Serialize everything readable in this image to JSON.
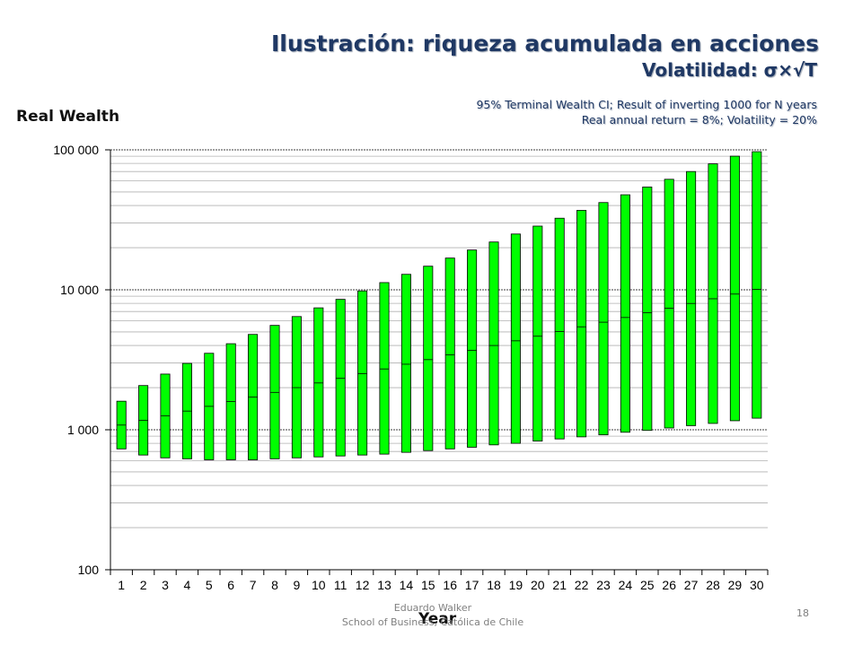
{
  "slide": {
    "title": "Ilustración: riqueza acumulada en acciones",
    "subtitle": "Volatilidad: σ×√T",
    "note_line1": "95% Terminal Wealth CI; Result of inverting 1000 for N years",
    "note_line2": "Real annual return = 8%; Volatility = 20%",
    "footer_line1": "Eduardo Walker",
    "footer_line2": "School of Business, Católica de Chile",
    "page_number": "18"
  },
  "chart_data": {
    "type": "bar",
    "subtype": "floating range (high-low) with median mark",
    "title": "",
    "ylabel": "Real Wealth",
    "xlabel": "Year",
    "yscale": "log",
    "ylim": [
      100,
      100000
    ],
    "yticks": [
      100,
      1000,
      10000,
      100000
    ],
    "ytick_labels": [
      "100",
      "1 000",
      "10 000",
      "100 000"
    ],
    "grid": "horizontal",
    "bar_color": "#00ff00",
    "bar_edge_color": "#000000",
    "categories": [
      "1",
      "2",
      "3",
      "4",
      "5",
      "6",
      "7",
      "8",
      "9",
      "10",
      "11",
      "12",
      "13",
      "14",
      "15",
      "16",
      "17",
      "18",
      "19",
      "20",
      "21",
      "22",
      "23",
      "24",
      "25",
      "26",
      "27",
      "28",
      "29",
      "30"
    ],
    "series": [
      {
        "values_low": [
          730,
          660,
          630,
          620,
          610,
          610,
          610,
          620,
          630,
          640,
          650,
          660,
          670,
          690,
          710,
          730,
          750,
          780,
          800,
          830,
          860,
          890,
          920,
          960,
          990,
          1030,
          1070,
          1110,
          1160,
          1210
        ]
      },
      {
        "values_median": [
          1080,
          1170,
          1260,
          1360,
          1470,
          1590,
          1710,
          1850,
          2000,
          2160,
          2330,
          2520,
          2720,
          2940,
          3170,
          3430,
          3700,
          4000,
          4320,
          4660,
          5030,
          5440,
          5870,
          6340,
          6850,
          7400,
          7990,
          8630,
          9320,
          10060
        ]
      },
      {
        "values_high": [
          1600,
          2070,
          2500,
          2980,
          3520,
          4120,
          4800,
          5570,
          6440,
          7430,
          8550,
          9820,
          11260,
          12900,
          14750,
          16860,
          19250,
          21960,
          25040,
          28520,
          32470,
          36940,
          42010,
          47750,
          54250,
          61610,
          69950,
          79400,
          90110,
          102250
        ]
      }
    ]
  }
}
